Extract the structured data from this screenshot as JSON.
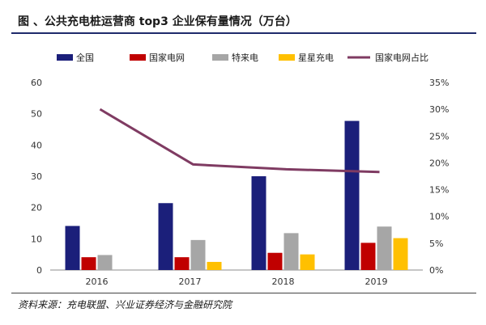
{
  "header": {
    "title": "图  、公共充电桩运营商 top3 企业保有量情况（万台）",
    "source": "资料来源：充电联盟、兴业证券经济与金融研究院"
  },
  "chart_data": {
    "type": "bar",
    "categories": [
      "2016",
      "2017",
      "2018",
      "2019"
    ],
    "series": [
      {
        "name": "全国",
        "type": "bar",
        "axis": "left",
        "color": "#1b1f7a",
        "values": [
          14.1,
          21.4,
          30.0,
          47.7
        ]
      },
      {
        "name": "国家电网",
        "type": "bar",
        "axis": "left",
        "color": "#c00000",
        "values": [
          4.1,
          4.1,
          5.5,
          8.7
        ]
      },
      {
        "name": "特来电",
        "type": "bar",
        "axis": "left",
        "color": "#a6a6a6",
        "values": [
          4.8,
          9.6,
          11.8,
          13.9
        ]
      },
      {
        "name": "星星充电",
        "type": "bar",
        "axis": "left",
        "color": "#ffc000",
        "values": [
          0,
          2.6,
          5.0,
          10.2
        ]
      },
      {
        "name": "国家电网占比",
        "type": "line",
        "axis": "right",
        "color": "#7f3b62",
        "values": [
          0.3,
          0.197,
          0.188,
          0.183
        ]
      }
    ],
    "ylim_left": [
      0,
      60
    ],
    "yticks_left": [
      "0",
      "10",
      "20",
      "30",
      "40",
      "50",
      "60"
    ],
    "ylim_right": [
      0,
      0.35
    ],
    "yticks_right": [
      "0%",
      "5%",
      "10%",
      "15%",
      "20%",
      "25%",
      "30%",
      "35%"
    ],
    "grid": false,
    "legend_position": "top"
  }
}
